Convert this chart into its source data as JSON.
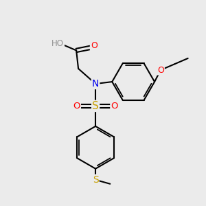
{
  "bg_color": "#EBEBEB",
  "colors": {
    "C": "#000000",
    "H": "#909090",
    "O": "#FF0000",
    "N": "#0000EE",
    "S_yellow": "#C8A000",
    "S_sulfonyl": "#C8A000"
  },
  "bond_color": "#000000",
  "bond_lw": 1.5,
  "font_size": 9,
  "fig_size": [
    3.0,
    3.0
  ],
  "dpi": 100,
  "xlim": [
    0,
    10
  ],
  "ylim": [
    0,
    10
  ]
}
